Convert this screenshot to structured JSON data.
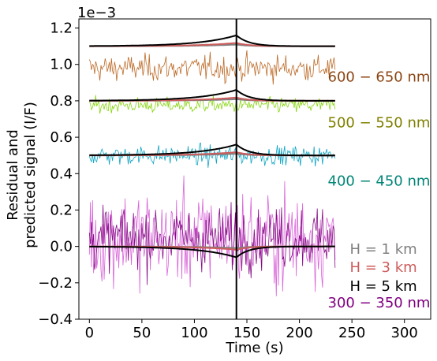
{
  "chart_data": {
    "type": "line",
    "title": "",
    "xlabel": "Time (s)",
    "ylabel_line1": "Residual and",
    "ylabel_line2": "predicted signal (I/F)",
    "offset_label": "1e−3",
    "xlim": [
      -10,
      325
    ],
    "ylim": [
      -0.4,
      1.25
    ],
    "y_scale": 0.001,
    "xticks": [
      0,
      50,
      100,
      150,
      200,
      250,
      300
    ],
    "yticks": [
      -0.4,
      -0.2,
      0.0,
      0.2,
      0.4,
      0.6,
      0.8,
      1.0,
      1.2
    ],
    "ytick_labels": [
      "−0.4",
      "−0.2",
      "0.0",
      "0.2",
      "0.4",
      "0.6",
      "0.8",
      "1.0",
      "1.2"
    ],
    "grid": false,
    "vline_x": 140,
    "x_range": [
      0,
      234
    ],
    "bands": [
      {
        "name": "600 − 650 nm",
        "color": "#8B4513",
        "noise_color": "#B8621B",
        "baseline": 1.1,
        "noise_mean": 0.98,
        "noise_amp": 0.06,
        "label_x": 227,
        "label_y": 0.905
      },
      {
        "name": "500 − 550 nm",
        "color": "#808000",
        "noise_color": "#7FD400",
        "baseline": 0.8,
        "noise_mean": 0.775,
        "noise_amp": 0.035,
        "label_x": 227,
        "label_y": 0.655
      },
      {
        "name": "400 − 450 nm",
        "color": "#008577",
        "noise_color": "#00A0C0",
        "baseline": 0.5,
        "noise_mean": 0.5,
        "noise_amp": 0.045,
        "label_x": 227,
        "label_y": 0.335
      },
      {
        "name": "300 − 350 nm",
        "color": "#800080",
        "noise_color": "#800080",
        "noise_color2": "#D65BD6",
        "baseline": 0.0,
        "noise_mean": 0.05,
        "noise_amp": 0.14,
        "label_x": 227,
        "label_y": -0.335
      }
    ],
    "model_series": [
      {
        "name": "H = 1 km",
        "color": "#808080",
        "scale": 0.15
      },
      {
        "name": "H = 3 km",
        "color": "#CD5C5C",
        "scale": 0.3
      },
      {
        "name": "H = 5 km",
        "color": "#000000",
        "scale": 1.0
      }
    ],
    "legend_position": "lower-right"
  }
}
